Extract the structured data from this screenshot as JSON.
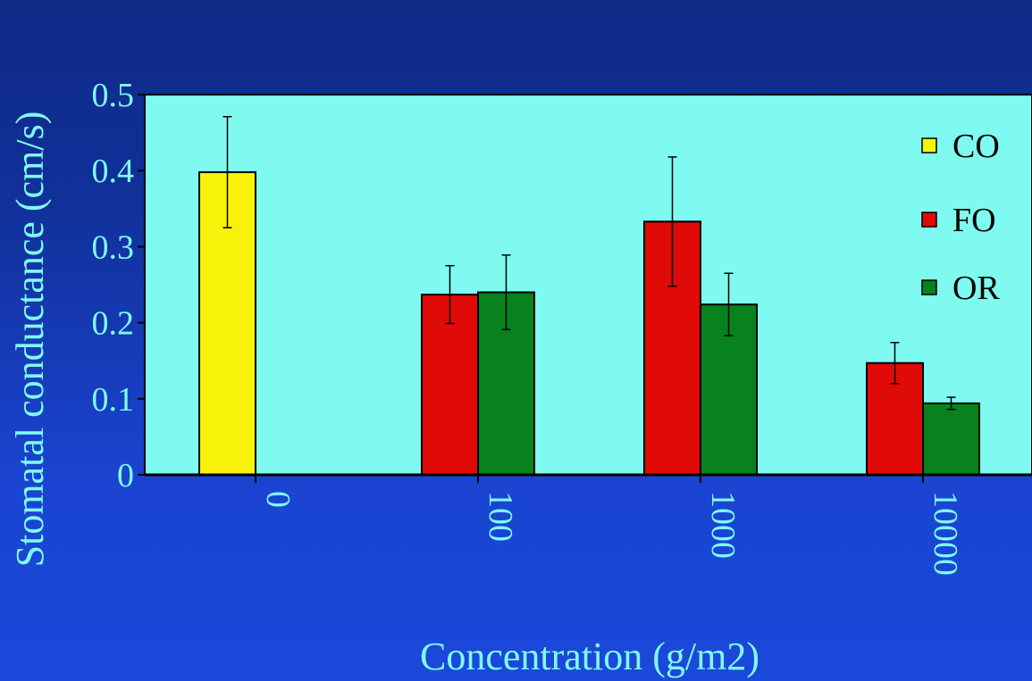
{
  "chart_data": {
    "type": "bar",
    "xlabel": "Concentration (g/m2)",
    "ylabel": "Stomatal conductance (cm/s)",
    "ylim": [
      0,
      0.5
    ],
    "yticks": [
      "0",
      "0.1",
      "0.2",
      "0.3",
      "0.4",
      "0.5"
    ],
    "categories": [
      "0",
      "100",
      "1000",
      "10000"
    ],
    "series": [
      {
        "name": "CO",
        "color": "#f8f20a",
        "values": [
          0.398,
          null,
          null,
          null
        ],
        "errors": [
          0.073,
          null,
          null,
          null
        ]
      },
      {
        "name": "FO",
        "color": "#e00a08",
        "values": [
          null,
          0.237,
          0.333,
          0.147
        ],
        "errors": [
          null,
          0.038,
          0.085,
          0.027
        ]
      },
      {
        "name": "OR",
        "color": "#07821c",
        "values": [
          null,
          0.24,
          0.224,
          0.094
        ],
        "errors": [
          null,
          0.049,
          0.041,
          0.008
        ]
      }
    ],
    "grid": false,
    "legend": "top-right",
    "plot_background": "#7ffaf0"
  }
}
